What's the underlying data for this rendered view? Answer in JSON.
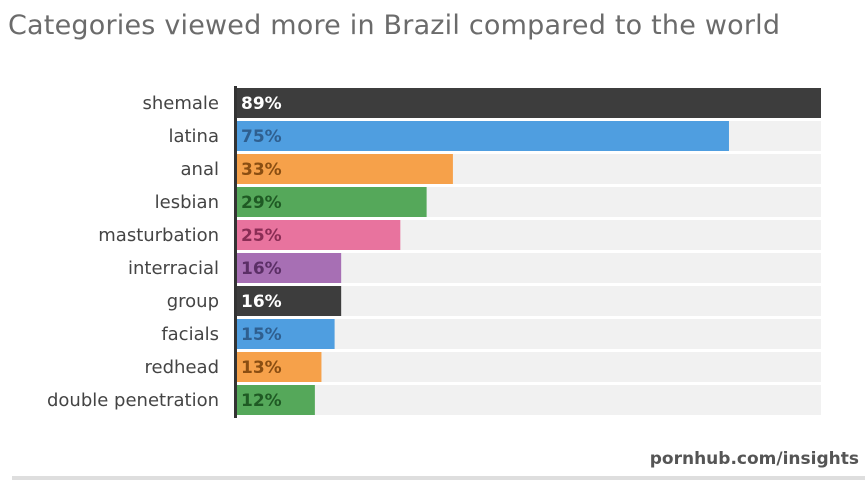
{
  "title": "Categories viewed more in Brazil compared to the world",
  "source": "pornhub.com/insights",
  "colors": {
    "dark": "#3d3d3d",
    "blue": "#4f9ee0",
    "orange": "#f6a14a",
    "green": "#55a85a",
    "pink": "#e8739e",
    "purple": "#a76fb4",
    "track": "#f1f1f1",
    "axis": "#333333"
  },
  "chart_data": {
    "type": "bar",
    "orientation": "horizontal",
    "categories": [
      "shemale",
      "latina",
      "anal",
      "lesbian",
      "masturbation",
      "interracial",
      "group",
      "facials",
      "redhead",
      "double penetration"
    ],
    "values": [
      89,
      75,
      33,
      29,
      25,
      16,
      16,
      15,
      13,
      12
    ],
    "value_labels": [
      "89%",
      "75%",
      "33%",
      "29%",
      "25%",
      "16%",
      "16%",
      "15%",
      "13%",
      "12%"
    ],
    "bar_colors": [
      "dark",
      "blue",
      "orange",
      "green",
      "pink",
      "purple",
      "dark",
      "blue",
      "orange",
      "green"
    ],
    "label_colors": [
      "#ffffff",
      "#2f5f8f",
      "#8a4e12",
      "#1f5a24",
      "#8a2d55",
      "#5b2f66",
      "#ffffff",
      "#2f5f8f",
      "#8a4e12",
      "#1f5a24"
    ],
    "xlim": [
      0,
      89
    ],
    "title": "Categories viewed more in Brazil compared to the world",
    "xlabel": "",
    "ylabel": "",
    "grid": false,
    "legend": "none"
  }
}
